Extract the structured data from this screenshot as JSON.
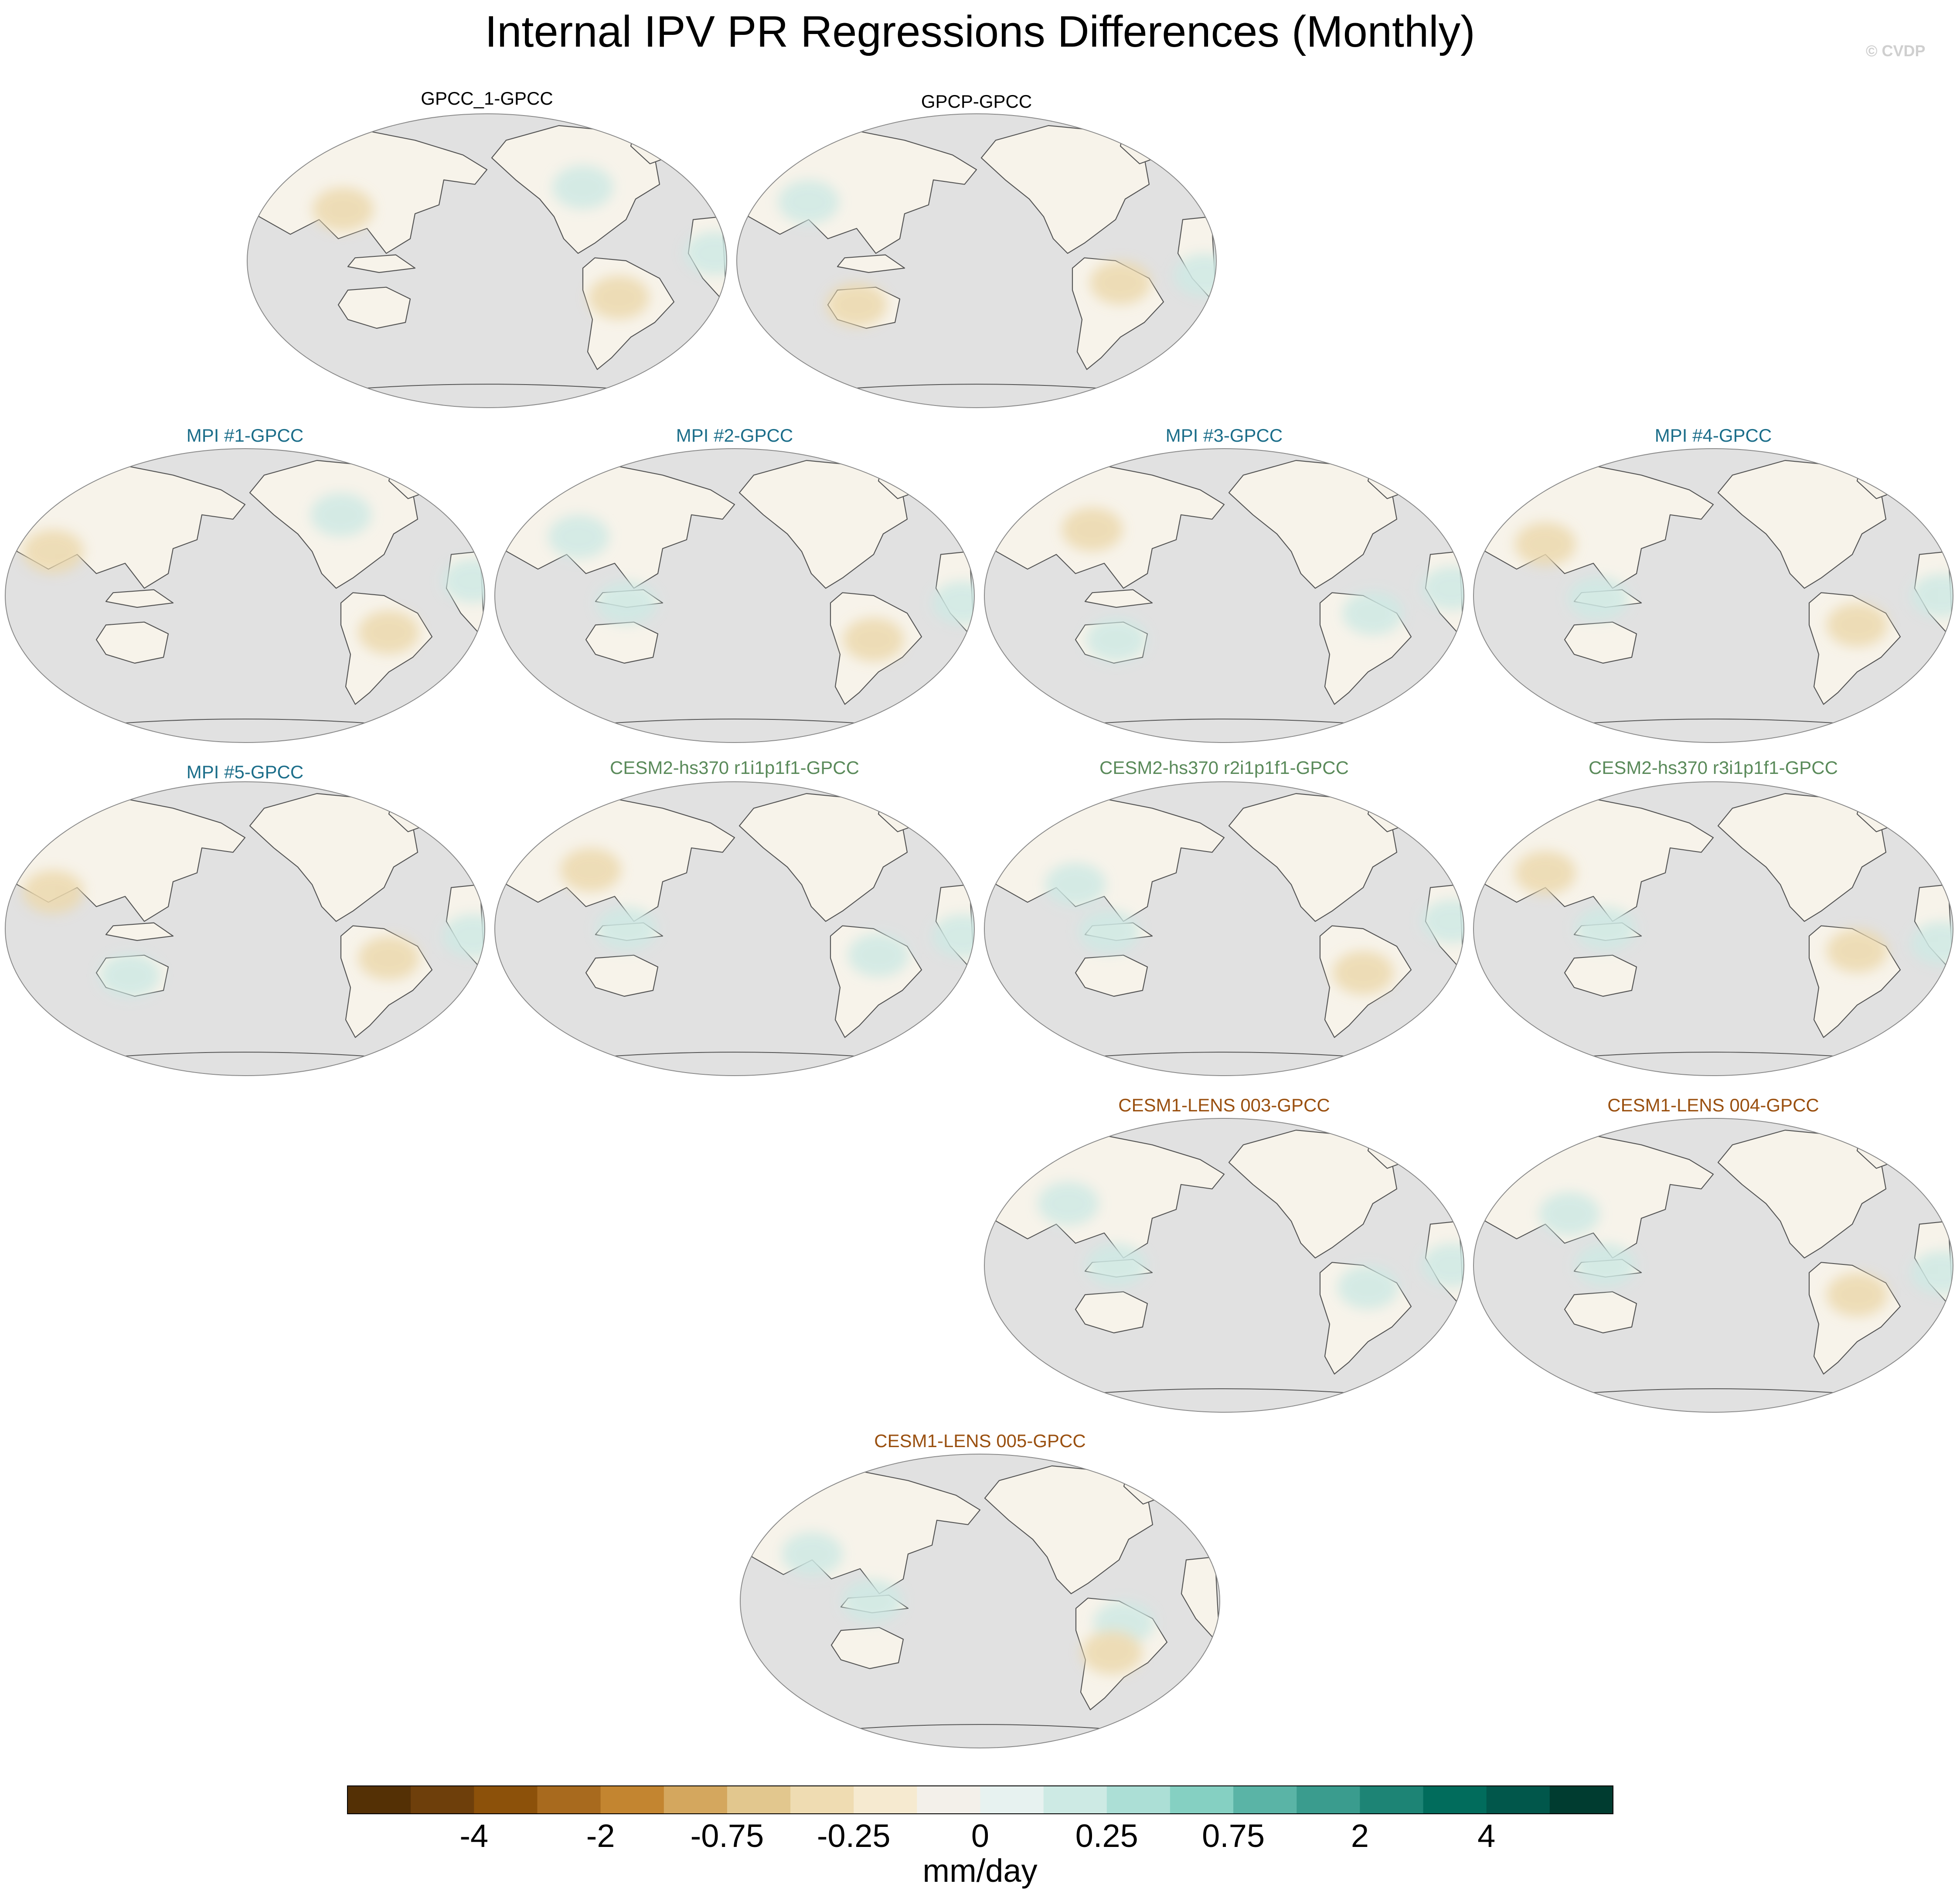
{
  "title": "Internal IPV PR Regressions Differences (Monthly)",
  "copyright": "© CVDP",
  "colors": {
    "background": "#ffffff",
    "ocean": "#e1e1e1",
    "map_outline": "#8a8a8a",
    "coastline": "#555555",
    "obs_title": "#000000",
    "mpi_title": "#1c6e8a",
    "cesm2_title": "#5a8a5a",
    "cesm1_title": "#9a5010"
  },
  "panels": [
    {
      "title": "GPCC_1-GPCC",
      "group": "obs"
    },
    {
      "title": "GPCP-GPCC",
      "group": "obs"
    },
    {
      "title": "MPI #1-GPCC",
      "group": "mpi"
    },
    {
      "title": "MPI #2-GPCC",
      "group": "mpi"
    },
    {
      "title": "MPI #3-GPCC",
      "group": "mpi"
    },
    {
      "title": "MPI #4-GPCC",
      "group": "mpi"
    },
    {
      "title": "MPI #5-GPCC",
      "group": "mpi"
    },
    {
      "title": "CESM2-hs370 r1i1p1f1-GPCC",
      "group": "cesm2"
    },
    {
      "title": "CESM2-hs370 r2i1p1f1-GPCC",
      "group": "cesm2"
    },
    {
      "title": "CESM2-hs370 r3i1p1f1-GPCC",
      "group": "cesm2"
    },
    {
      "title": "CESM1-LENS 003-GPCC",
      "group": "cesm1"
    },
    {
      "title": "CESM1-LENS 004-GPCC",
      "group": "cesm1"
    },
    {
      "title": "CESM1-LENS 005-GPCC",
      "group": "cesm1"
    }
  ],
  "colorbar": {
    "colors": [
      "#543005",
      "#6e3f0b",
      "#8c510a",
      "#a86a1e",
      "#c38530",
      "#d4a75e",
      "#e2c78e",
      "#efdcb2",
      "#f6ead0",
      "#f3f0ea",
      "#e7f2f0",
      "#cdeae4",
      "#acdfd6",
      "#85d0c2",
      "#5ab4a6",
      "#3a9c8e",
      "#1d8475",
      "#016c5c",
      "#01574b",
      "#003c30"
    ],
    "tick_labels": [
      "-4",
      "-2",
      "-0.75",
      "-0.25",
      "0",
      "0.25",
      "0.75",
      "2",
      "4"
    ],
    "units": "mm/day"
  }
}
